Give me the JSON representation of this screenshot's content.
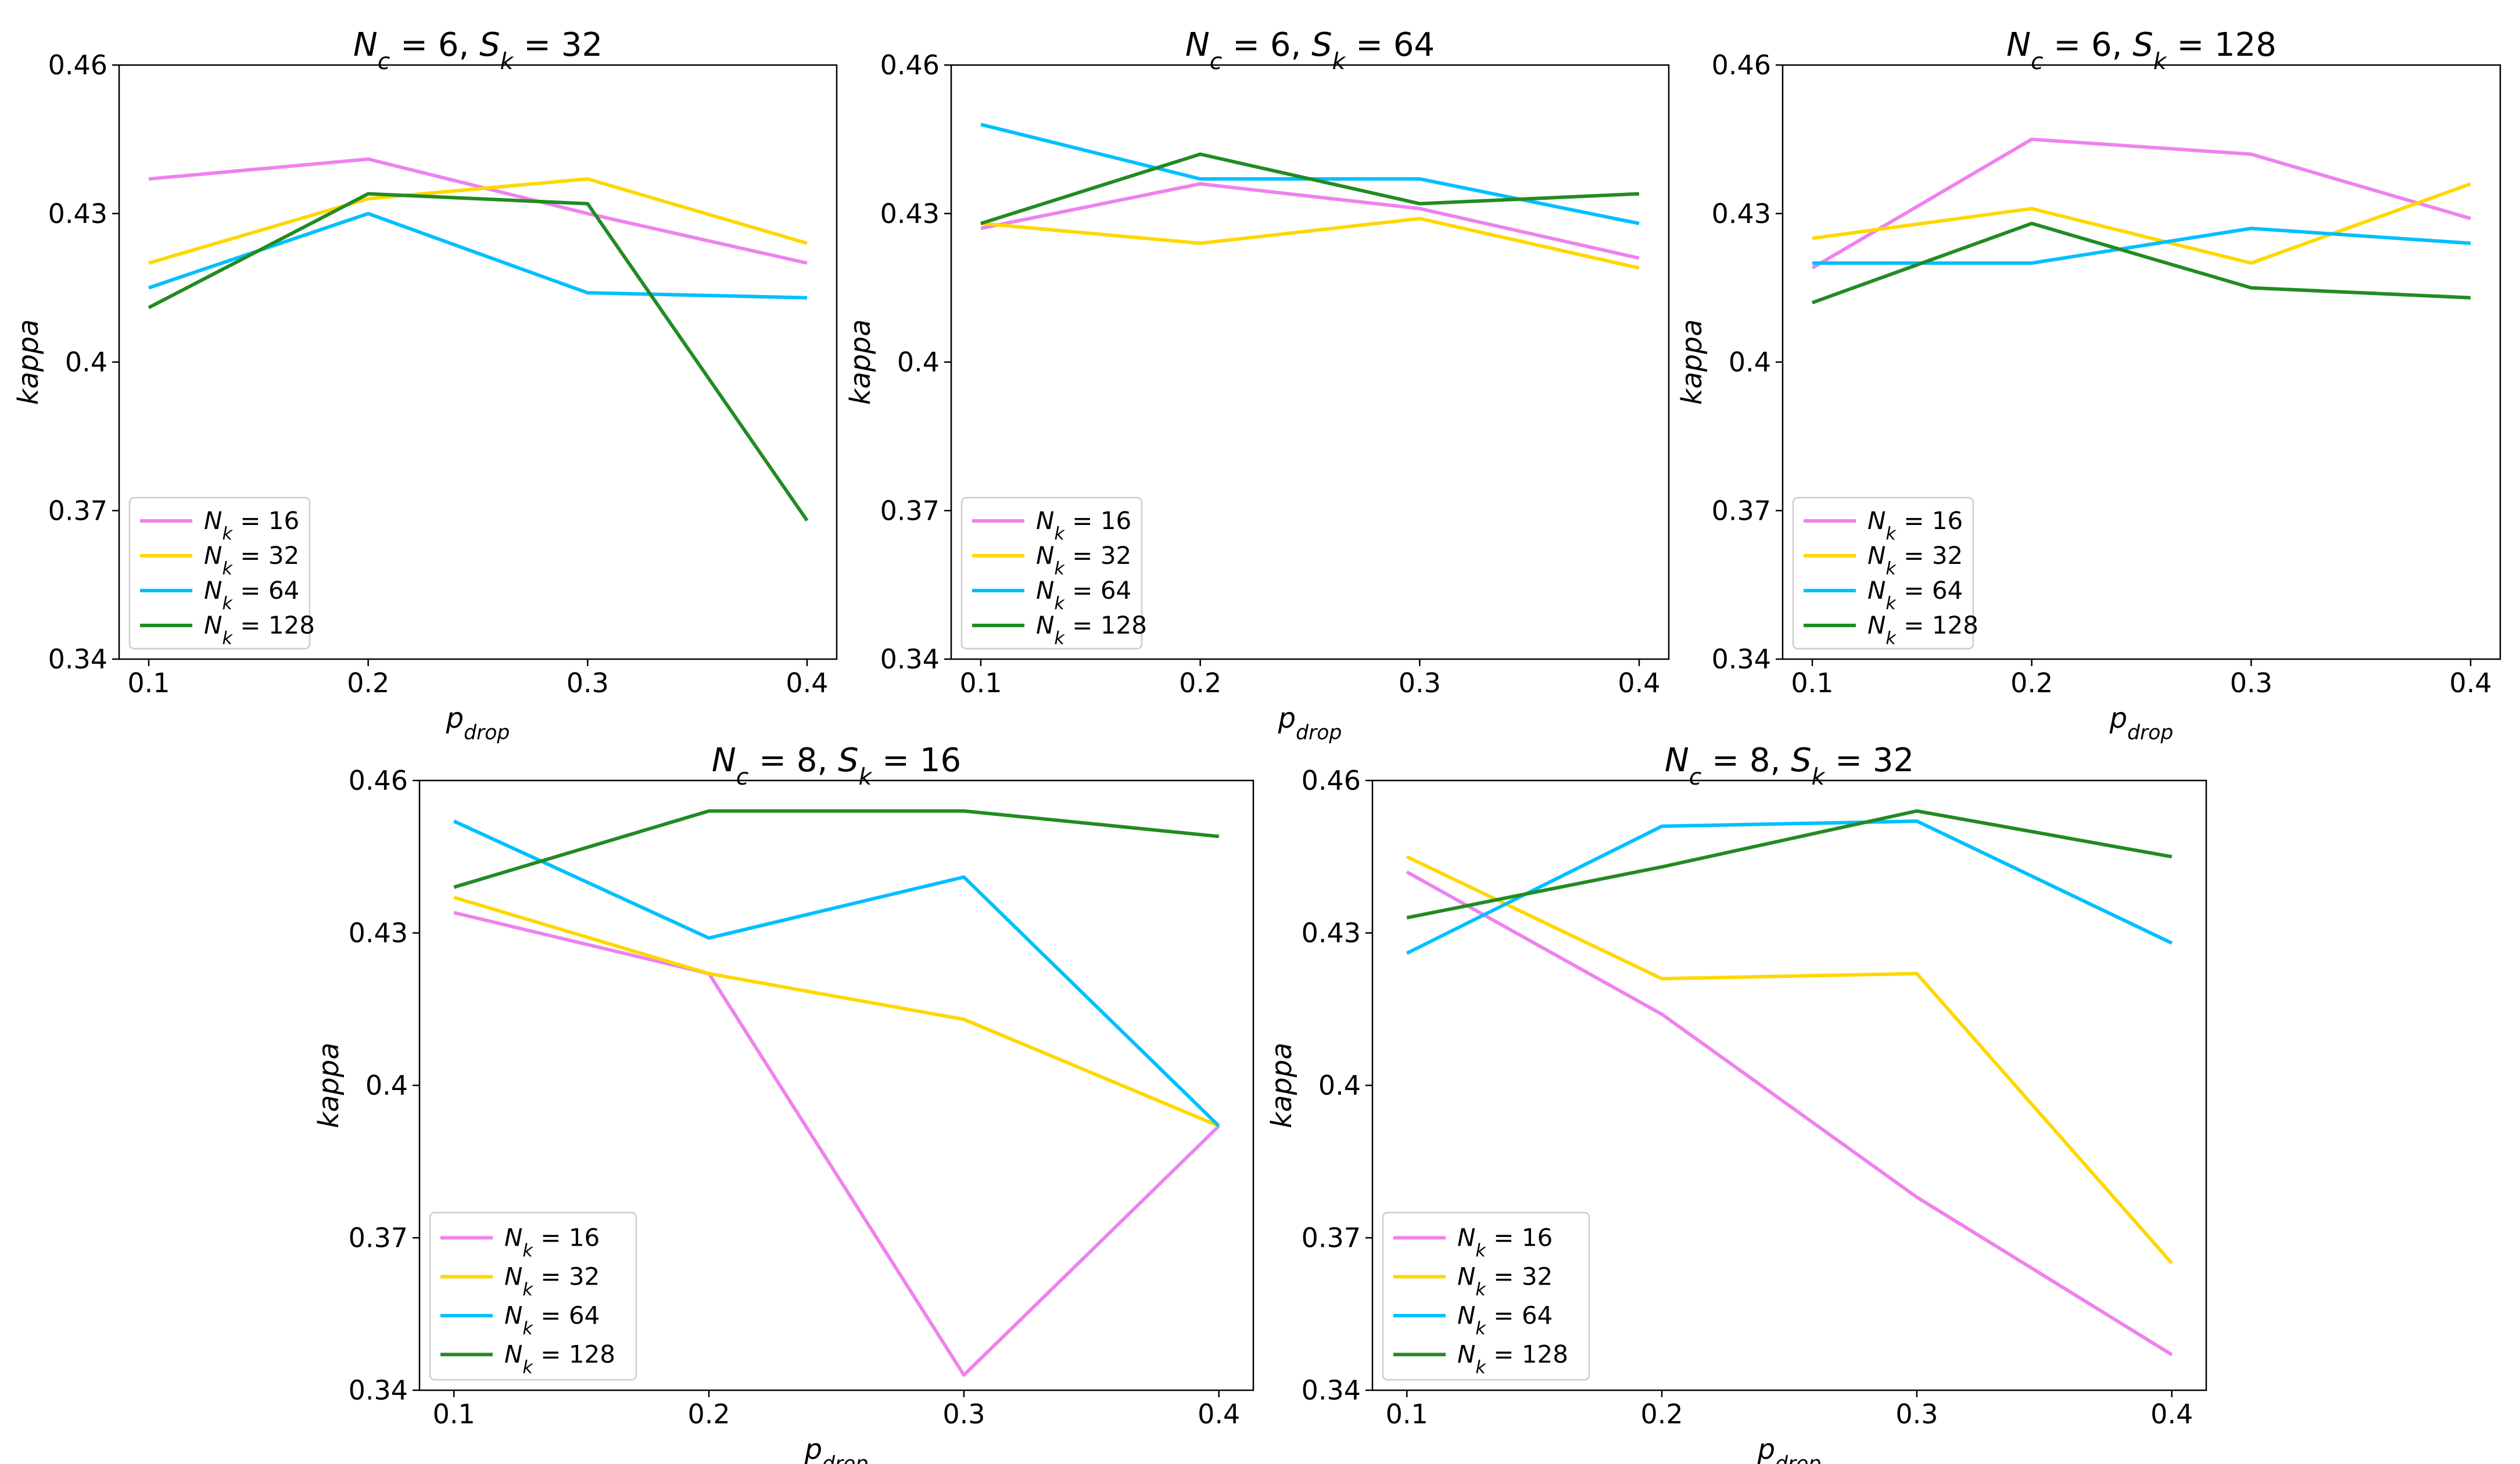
{
  "series_colors": {
    "16": "#EE82EE",
    "32": "#FFD700",
    "64": "#00BFFF",
    "128": "#228B22"
  },
  "chart_data": [
    {
      "type": "line",
      "nc": "6",
      "sk": "32",
      "xlabel_main": "p",
      "xlabel_sub": "drop",
      "ylabel": "kappa",
      "x": [
        0.1,
        0.2,
        0.3,
        0.4
      ],
      "xticks": [
        "0.1",
        "0.2",
        "0.3",
        "0.4"
      ],
      "ylim": [
        0.34,
        0.46
      ],
      "yticks": [
        "0.34",
        "0.37",
        "0.4",
        "0.43",
        "0.46"
      ],
      "legend_position": "lower-left",
      "series": [
        {
          "nk": "16",
          "values": [
            0.437,
            0.441,
            0.43,
            0.42
          ]
        },
        {
          "nk": "32",
          "values": [
            0.42,
            0.433,
            0.437,
            0.424
          ]
        },
        {
          "nk": "64",
          "values": [
            0.415,
            0.43,
            0.414,
            0.413
          ]
        },
        {
          "nk": "128",
          "values": [
            0.411,
            0.434,
            0.432,
            0.368
          ]
        }
      ]
    },
    {
      "type": "line",
      "nc": "6",
      "sk": "64",
      "xlabel_main": "p",
      "xlabel_sub": "drop",
      "ylabel": "kappa",
      "x": [
        0.1,
        0.2,
        0.3,
        0.4
      ],
      "xticks": [
        "0.1",
        "0.2",
        "0.3",
        "0.4"
      ],
      "ylim": [
        0.34,
        0.46
      ],
      "yticks": [
        "0.34",
        "0.37",
        "0.4",
        "0.43",
        "0.46"
      ],
      "legend_position": "lower-left",
      "series": [
        {
          "nk": "16",
          "values": [
            0.427,
            0.436,
            0.431,
            0.421
          ]
        },
        {
          "nk": "32",
          "values": [
            0.428,
            0.424,
            0.429,
            0.419
          ]
        },
        {
          "nk": "64",
          "values": [
            0.448,
            0.437,
            0.437,
            0.428
          ]
        },
        {
          "nk": "128",
          "values": [
            0.428,
            0.442,
            0.432,
            0.434
          ]
        }
      ]
    },
    {
      "type": "line",
      "nc": "6",
      "sk": "128",
      "xlabel_main": "p",
      "xlabel_sub": "drop",
      "ylabel": "kappa",
      "x": [
        0.1,
        0.2,
        0.3,
        0.4
      ],
      "xticks": [
        "0.1",
        "0.2",
        "0.3",
        "0.4"
      ],
      "ylim": [
        0.34,
        0.46
      ],
      "yticks": [
        "0.34",
        "0.37",
        "0.4",
        "0.43",
        "0.46"
      ],
      "legend_position": "lower-left",
      "series": [
        {
          "nk": "16",
          "values": [
            0.419,
            0.445,
            0.442,
            0.429
          ]
        },
        {
          "nk": "32",
          "values": [
            0.425,
            0.431,
            0.42,
            0.436
          ]
        },
        {
          "nk": "64",
          "values": [
            0.42,
            0.42,
            0.427,
            0.424
          ]
        },
        {
          "nk": "128",
          "values": [
            0.412,
            0.428,
            0.415,
            0.413
          ]
        }
      ]
    },
    {
      "type": "line",
      "nc": "8",
      "sk": "16",
      "xlabel_main": "p",
      "xlabel_sub": "drop",
      "ylabel": "kappa",
      "x": [
        0.1,
        0.2,
        0.3,
        0.4
      ],
      "xticks": [
        "0.1",
        "0.2",
        "0.3",
        "0.4"
      ],
      "ylim": [
        0.34,
        0.46
      ],
      "yticks": [
        "0.34",
        "0.37",
        "0.4",
        "0.43",
        "0.46"
      ],
      "legend_position": "lower-left",
      "series": [
        {
          "nk": "16",
          "values": [
            0.434,
            0.422,
            0.343,
            0.392
          ]
        },
        {
          "nk": "32",
          "values": [
            0.437,
            0.422,
            0.413,
            0.392
          ]
        },
        {
          "nk": "64",
          "values": [
            0.452,
            0.429,
            0.441,
            0.392
          ]
        },
        {
          "nk": "128",
          "values": [
            0.439,
            0.454,
            0.454,
            0.449
          ]
        }
      ]
    },
    {
      "type": "line",
      "nc": "8",
      "sk": "32",
      "xlabel_main": "p",
      "xlabel_sub": "drop",
      "ylabel": "kappa",
      "x": [
        0.1,
        0.2,
        0.3,
        0.4
      ],
      "xticks": [
        "0.1",
        "0.2",
        "0.3",
        "0.4"
      ],
      "ylim": [
        0.34,
        0.46
      ],
      "yticks": [
        "0.34",
        "0.37",
        "0.4",
        "0.43",
        "0.46"
      ],
      "legend_position": "lower-left",
      "series": [
        {
          "nk": "16",
          "values": [
            0.442,
            0.414,
            0.378,
            0.347
          ]
        },
        {
          "nk": "32",
          "values": [
            0.445,
            0.421,
            0.422,
            0.365
          ]
        },
        {
          "nk": "64",
          "values": [
            0.426,
            0.451,
            0.452,
            0.428
          ]
        },
        {
          "nk": "128",
          "values": [
            0.433,
            0.443,
            0.454,
            0.445
          ]
        }
      ]
    }
  ]
}
